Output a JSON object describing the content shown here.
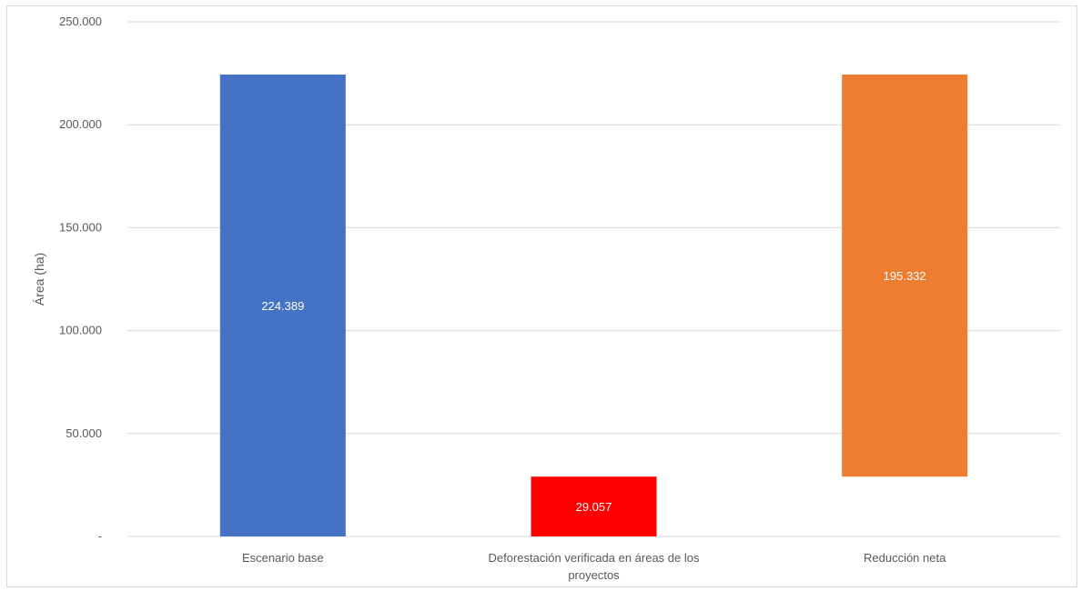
{
  "chart_data": {
    "type": "bar",
    "subtype": "waterfall",
    "title": "",
    "xlabel": "",
    "ylabel": "Área (ha)",
    "ylim": [
      0,
      250000
    ],
    "yticks": [
      0,
      50000,
      100000,
      150000,
      200000,
      250000
    ],
    "ytick_labels": [
      "-",
      "50.000",
      "100.000",
      "150.000",
      "200.000",
      "250.000"
    ],
    "grid": true,
    "legend": "none",
    "categories": [
      [
        "Escenario base"
      ],
      [
        "Deforestación verificada en áreas de los",
        "proyectos"
      ],
      [
        "Reducción neta"
      ]
    ],
    "bars": [
      {
        "base": 0,
        "top": 224389,
        "label": "224.389",
        "color": "#4472c4"
      },
      {
        "base": 0,
        "top": 29057,
        "label": "29.057",
        "color": "#ff0000"
      },
      {
        "base": 29057,
        "top": 224389,
        "label": "195.332",
        "color": "#ed7d31"
      }
    ]
  }
}
